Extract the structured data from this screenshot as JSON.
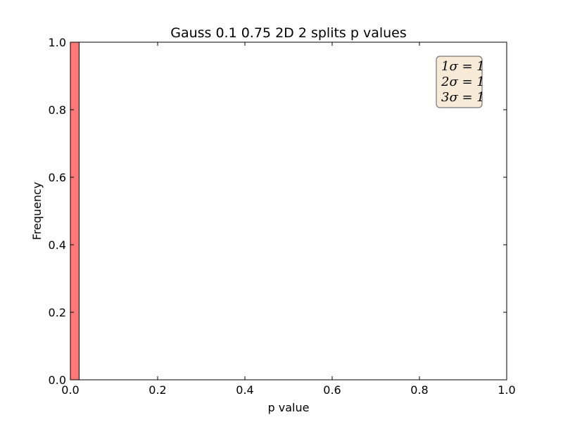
{
  "chart_data": {
    "type": "bar",
    "title": "Gauss 0.1 0.75 2D 2 splits p values",
    "xlabel": "p value",
    "ylabel": "Frequency",
    "xlim": [
      0.0,
      1.0
    ],
    "ylim": [
      0.0,
      1.0
    ],
    "x_ticks": [
      "0.0",
      "0.2",
      "0.4",
      "0.6",
      "0.8",
      "1.0"
    ],
    "y_ticks": [
      "0.0",
      "0.2",
      "0.4",
      "0.6",
      "0.8",
      "1.0"
    ],
    "bins": [
      {
        "x_start": 0.0,
        "x_end": 0.02,
        "value": 1.0
      }
    ],
    "bar_color": "#ff7777",
    "grid": false,
    "legend_placement": "top-right",
    "annotations": [
      "1σ = 1",
      "2σ = 1",
      "3σ = 1"
    ],
    "annotation_box_color": "#f7ead6"
  }
}
